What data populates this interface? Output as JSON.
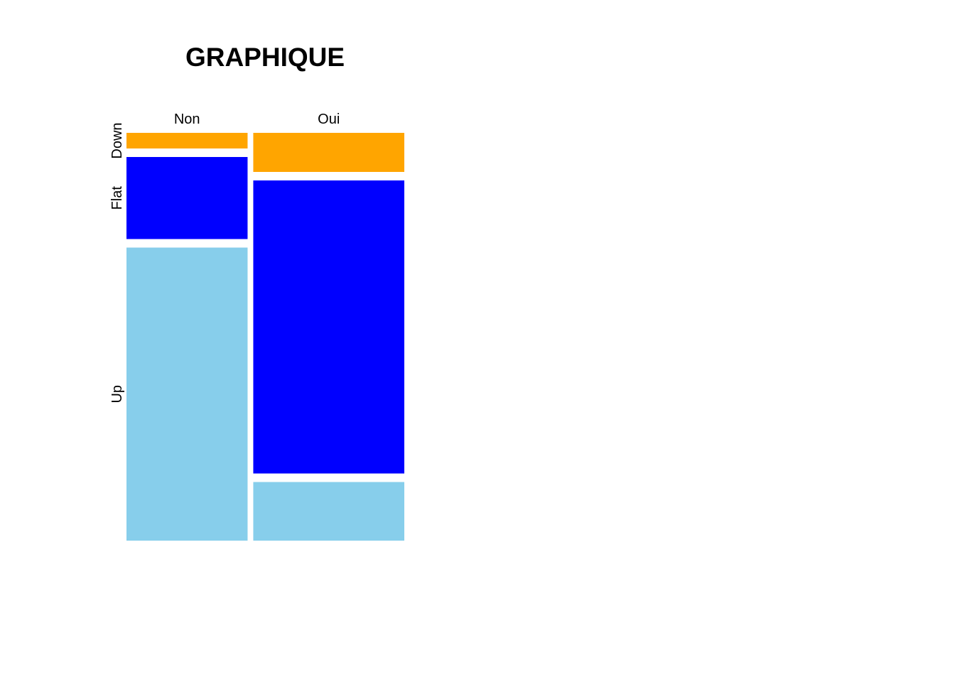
{
  "chart_data": {
    "type": "mosaic",
    "title": "GRAPHIQUE",
    "columns": [
      "Non",
      "Oui"
    ],
    "rows": [
      "Down",
      "Flat",
      "Up"
    ],
    "column_widths": [
      0.445,
      0.555
    ],
    "proportions": {
      "Non": [
        0.04,
        0.21,
        0.75
      ],
      "Oui": [
        0.1,
        0.75,
        0.15
      ]
    },
    "colors": {
      "Down": "#FFA500",
      "Flat": "#0000FF",
      "Up": "#87CEEB"
    }
  }
}
